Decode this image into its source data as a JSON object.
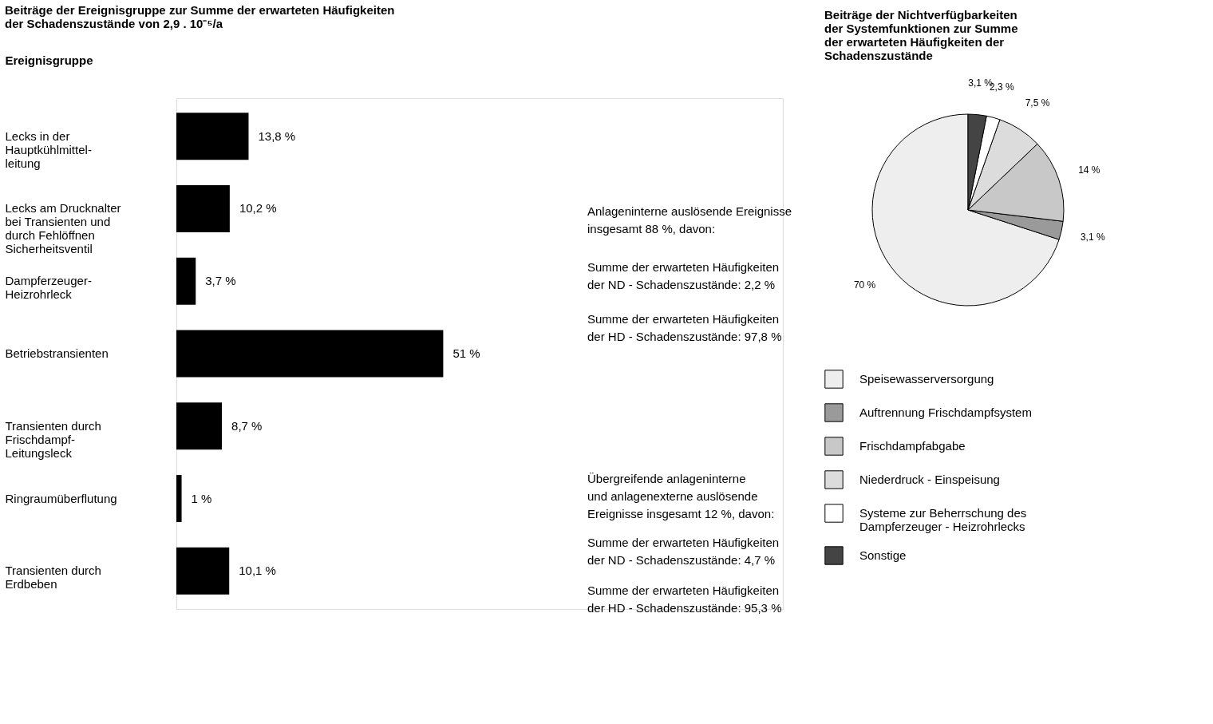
{
  "chart_data": [
    {
      "type": "bar",
      "orientation": "horizontal",
      "title": "Beiträge der Ereignisgruppe zur Summe der erwarteten Häufigkeiten\nder Schadenszustände von 2,9 . 10⁻⁵/a",
      "ylabel": "Ereignisgruppe",
      "categories": [
        "Lecks in der\nHauptkühlmittel-\nleitung",
        "Lecks am Drucknalter\nbei Transienten und\ndurch Fehlöffnen\nSicherheitsventil",
        "Dampferzeuger-\nHeizrohrleck",
        "Betriebstransienten",
        "Transienten durch\nFrischdampf-\nLeitungsleck",
        "Ringraumüberflutung",
        "Transienten durch\nErdbeben"
      ],
      "values": [
        13.8,
        10.2,
        3.7,
        51,
        8.7,
        1,
        10.1
      ],
      "color": "#000000",
      "value_labels": [
        "13,8 %",
        "10,2 %",
        "3,7 %",
        "51 %",
        "8,7 %",
        "1 %",
        "10,1 %"
      ],
      "annotations": [
        "Anlageninterne auslösende Ereignisse\ninsgesamt 88 %, davon:",
        "Summe der erwarteten Häufigkeiten\nder ND - Schadenszustände: 2,2 %",
        "Summe der erwarteten Häufigkeiten\nder HD - Schadenszustände: 97,8 %",
        "Übergreifende anlageninterne\nund anlagenexterne auslösende\nEreignisse insgesamt 12 %, davon:",
        "Summe der erwarteten Häufigkeiten\nder ND - Schadenszustände: 4,7 %",
        "Summe der erwarteten Häufigkeiten\nder HD - Schadenszustände: 95,3 %"
      ]
    },
    {
      "type": "pie",
      "title": "Beiträge der Nichtverfügbarkeiten\nder Systemfunktionen zur Summe\nder erwarteten Häufigkeiten der\nSchadenszustände",
      "legend": "bottom",
      "categories": [
        "Speisewasserversorgung",
        "Auftrennung Frischdampfsystem",
        "Frischdampfabgabe",
        "Niederdruck - Einspeisung",
        "Systeme zur Beherrschung des\nDampferzeuger - Heizrohrlecks",
        "Sonstige"
      ],
      "values": [
        70,
        3.1,
        14,
        7.5,
        2.3,
        3.1
      ],
      "colors": [
        "#eeeeee",
        "#9a9a9a",
        "#c8c8c8",
        "#dcdcdc",
        "#ffffff",
        "#444444"
      ],
      "value_labels": [
        "70 %",
        "3,1 %",
        "14 %",
        "7,5 %",
        "2,3 %",
        "3,1 %"
      ]
    }
  ]
}
